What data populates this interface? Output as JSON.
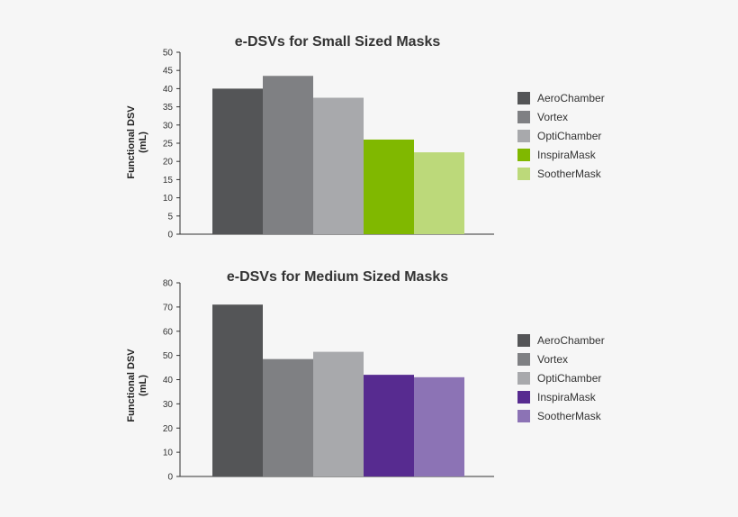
{
  "chart_data": [
    {
      "type": "bar",
      "title": "e-DSVs for Small Sized Masks",
      "xlabel": "",
      "ylabel": "Functional DSV (mL)",
      "ylabel_lines": [
        "Functional DSV",
        "(mL)"
      ],
      "ylim": [
        0,
        50
      ],
      "yticks": [
        0,
        5,
        10,
        15,
        20,
        25,
        30,
        35,
        40,
        45,
        50
      ],
      "grid": false,
      "legend_position": "right",
      "categories": [
        "AeroChamber",
        "Vortex",
        "OptiChamber",
        "InspiraMask",
        "SootherMask"
      ],
      "values": [
        40,
        43.5,
        37.5,
        26,
        22.5
      ],
      "colors": [
        "#545557",
        "#7f8083",
        "#a8a9ac",
        "#80b800",
        "#bcd97a"
      ]
    },
    {
      "type": "bar",
      "title": "e-DSVs for Medium Sized Masks",
      "xlabel": "",
      "ylabel": "Functional DSV (mL)",
      "ylabel_lines": [
        "Functional DSV",
        "(mL)"
      ],
      "ylim": [
        0,
        80
      ],
      "yticks": [
        0,
        10,
        20,
        30,
        40,
        50,
        60,
        70,
        80
      ],
      "grid": false,
      "legend_position": "right",
      "categories": [
        "AeroChamber",
        "Vortex",
        "OptiChamber",
        "InspiraMask",
        "SootherMask"
      ],
      "values": [
        71,
        48.5,
        51.5,
        42,
        41
      ],
      "colors": [
        "#545557",
        "#7f8083",
        "#a8a9ac",
        "#572b90",
        "#8c73b5"
      ]
    }
  ]
}
